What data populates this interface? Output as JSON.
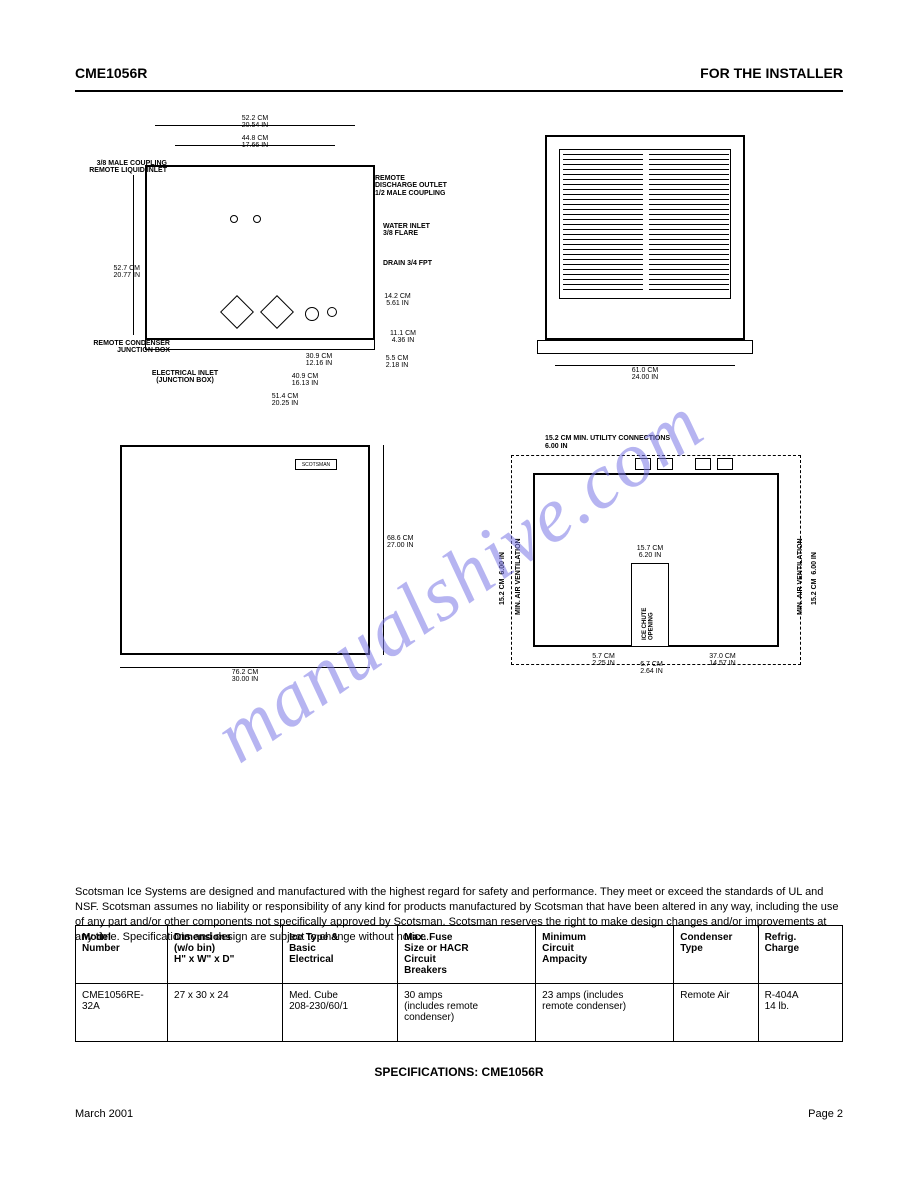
{
  "header": {
    "left": "CME1056R",
    "right": "FOR THE INSTALLER"
  },
  "watermark": {
    "text": "manualshive.com",
    "color": "#7b78e6"
  },
  "back_view": {
    "dims": {
      "top_outer": {
        "cm": "52.2 CM",
        "in": "20.54 IN"
      },
      "top_inner": {
        "cm": "44.8 CM",
        "in": "17.66 IN"
      },
      "height": {
        "cm": "52.7 CM",
        "in": "20.77 IN"
      },
      "right1": {
        "cm": "14.2 CM",
        "in": "5.61 IN"
      },
      "bot_a": {
        "cm": "30.9 CM",
        "in": "12.16 IN"
      },
      "bot_b": {
        "cm": "40.9 CM",
        "in": "16.13 IN"
      },
      "bot_c": {
        "cm": "51.4 CM",
        "in": "20.25 IN"
      },
      "edge1": {
        "cm": "11.1 CM",
        "in": "4.36 IN"
      },
      "edge2": {
        "cm": "5.5 CM",
        "in": "2.18 IN"
      }
    },
    "callouts": {
      "coupling": "3/8 MALE COUPLING\nREMOTE LIQUID INLET",
      "discharge": "REMOTE\nDISCHARGE OUTLET\n1/2 MALE COUPLING",
      "water": "WATER INLET\n3/8 FLARE",
      "drain": "DRAIN 3/4 FPT",
      "cond_jb": "REMOTE CONDENSER\nJUNCTION BOX",
      "elec": "ELECTRICAL INLET\n(JUNCTION BOX)"
    }
  },
  "side_view": {
    "width": {
      "cm": "61.0 CM",
      "in": "24.00 IN"
    }
  },
  "front_view": {
    "badge": "SCOTSMAN",
    "width": {
      "cm": "76.2 CM",
      "in": "30.00 IN"
    },
    "height": {
      "cm": "68.6 CM",
      "in": "27.00 IN"
    }
  },
  "plan_view": {
    "top_note": "15.2 CM MIN.   UTILITY CONNECTIONS",
    "top_note2": "6.00 IN",
    "side_note": "MIN. AIR VENTILATION",
    "side_dim": {
      "cm": "15.2 CM",
      "in": "6.00 IN"
    },
    "chute_label": "ICE CHUTE\nOPENING",
    "chute_w": {
      "cm": "15.7 CM",
      "in": "6.20 IN"
    },
    "bot_a": {
      "cm": "5.7 CM",
      "in": "2.25 IN"
    },
    "bot_b": {
      "cm": "6.7 CM",
      "in": "2.64 IN"
    },
    "bot_c": {
      "cm": "37.0 CM",
      "in": "14.57 IN"
    }
  },
  "spec_intro": "Scotsman Ice Systems are designed and manufactured with the highest regard for safety and performance. They meet or exceed the standards of UL and NSF. Scotsman assumes no liability or responsibility of any kind for products manufactured by Scotsman that have been altered in any way, including the use of any part and/or other components not specifically approved by Scotsman. Scotsman reserves the right to make design changes and/or improvements at any time. Specifications and design are subject to change without notice.",
  "spec_table": {
    "columns": [
      "Model\nNumber",
      "Dimensions\n(w/o bin)\nH\" x W\" x D\"",
      "Ice Type &\nBasic\nElectrical",
      "Max. Fuse\nSize or HACR\nCircuit\nBreakers",
      "Minimum\nCircuit\nAmpacity",
      "Condenser\nType",
      "Refrig.\nCharge"
    ],
    "rows": [
      [
        "CME1056RE-32A",
        "27 x 30 x 24",
        "Med. Cube\n208-230/60/1",
        "30 amps\n(includes remote\ncondenser)",
        "23 amps (includes\nremote condenser)",
        "Remote Air",
        "R-404A\n14 lb."
      ]
    ]
  },
  "caption": "SPECIFICATIONS: CME1056R",
  "footer": {
    "left": "March 2001",
    "right": "Page 2"
  }
}
